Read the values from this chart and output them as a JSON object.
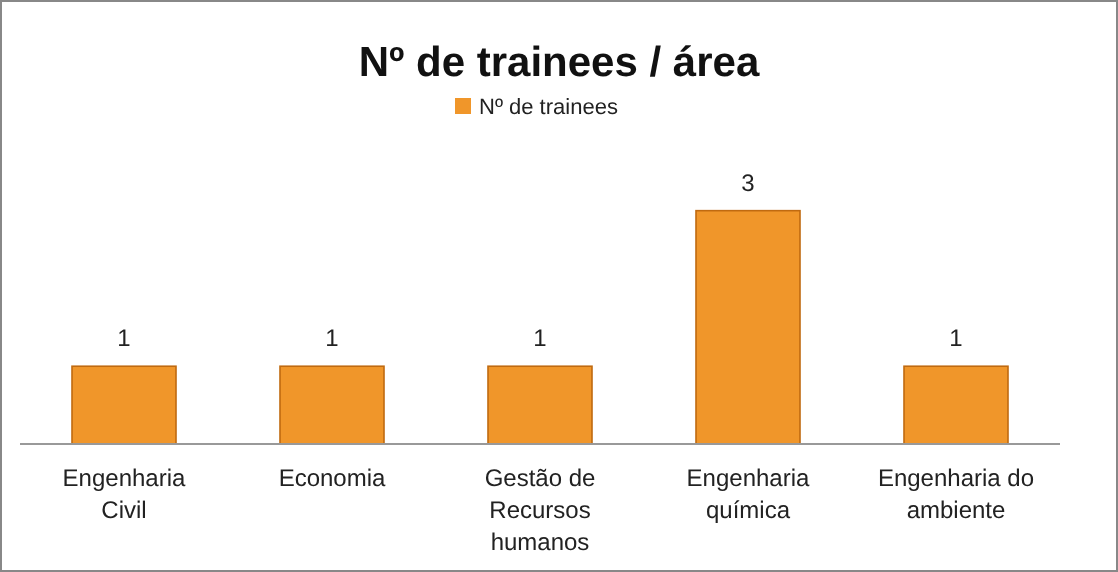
{
  "chart_data": {
    "type": "bar",
    "title": "Nº de trainees / área",
    "categories": [
      "Engenharia Civil",
      "Economia",
      "Gestão de Recursos humanos",
      "Engenharia química",
      "Engenharia do ambiente"
    ],
    "series": [
      {
        "name": "Nº de trainees",
        "color": "#f0962a",
        "values": [
          1,
          1,
          1,
          3,
          1
        ]
      }
    ],
    "data_labels": true,
    "legend": "top",
    "grid": false
  }
}
